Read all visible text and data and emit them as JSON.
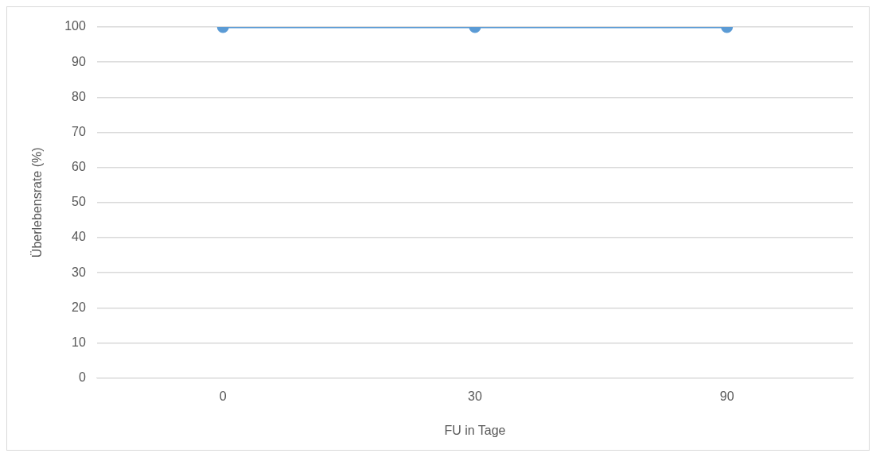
{
  "chart_data": {
    "type": "line",
    "xlabel": "FU in Tage",
    "ylabel": "Überlebensrate (%)",
    "categories": [
      "0",
      "30",
      "90"
    ],
    "series": [
      {
        "color": "#5b9bd5",
        "values": [
          100,
          100,
          100
        ]
      }
    ],
    "ylim": [
      0,
      100
    ],
    "yticks": [
      0,
      10,
      20,
      30,
      40,
      50,
      60,
      70,
      80,
      90,
      100
    ],
    "grid": "y",
    "legend": false,
    "marker": "circle",
    "line_style": "solid"
  }
}
